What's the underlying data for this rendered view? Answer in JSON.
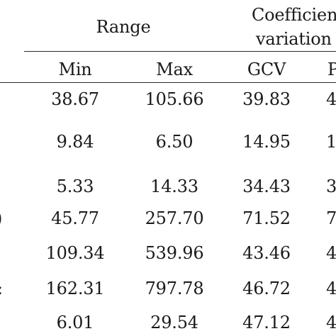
{
  "header": {
    "group_range": "Range",
    "group_cv_line1": "Coefficien",
    "group_cv_line2": "variation (",
    "columns": [
      "Min",
      "Max",
      "GCV",
      "P"
    ]
  },
  "rows": [
    {
      "row_mark": "",
      "min": "38.67",
      "max": "105.66",
      "gcv": "39.83",
      "pcv": "4"
    },
    {
      "row_mark": "",
      "min": "9.84",
      "max": "6.50",
      "gcv": "14.95",
      "pcv": "1"
    },
    {
      "row_mark": "",
      "min": "5.33",
      "max": "14.33",
      "gcv": "34.43",
      "pcv": "3"
    },
    {
      "row_mark": ")",
      "min": "45.77",
      "max": "257.70",
      "gcv": "71.52",
      "pcv": "7"
    },
    {
      "row_mark": "",
      "min": "109.34",
      "max": "539.96",
      "gcv": "43.46",
      "pcv": "4"
    },
    {
      "row_mark": ":",
      "min": "162.31",
      "max": "797.78",
      "gcv": "46.72",
      "pcv": "4"
    },
    {
      "row_mark": "",
      "min": "6.01",
      "max": "29.54",
      "gcv": "47.12",
      "pcv": "4"
    }
  ]
}
